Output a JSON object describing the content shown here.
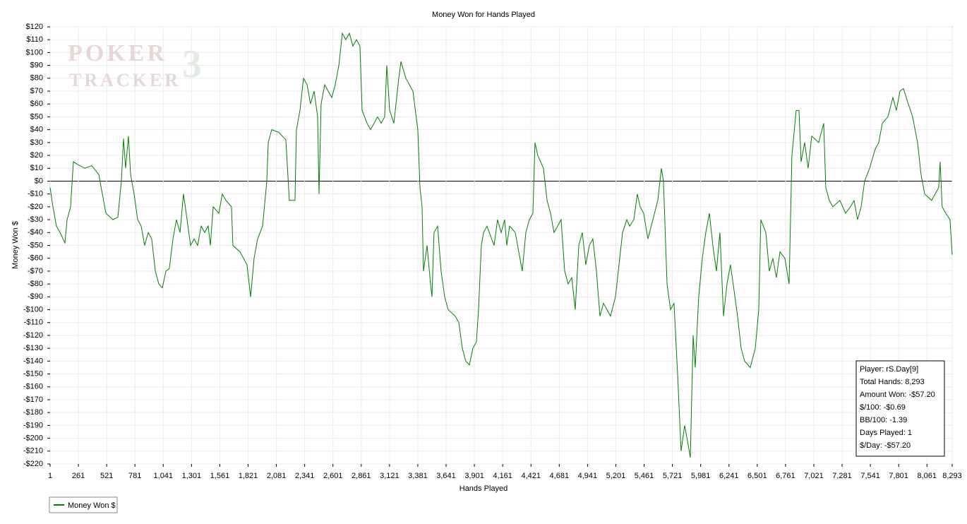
{
  "chart_data": {
    "type": "line",
    "title": "Money Won for Hands Played",
    "x_label": "Hands Played",
    "y_label": "Money Won $",
    "watermark": [
      "POKER",
      "TRACKER",
      "3"
    ],
    "stats": [
      "Player: rS.Day[9]",
      "Total Hands: 8,293",
      "Amount Won: -$57.20",
      "$/100: -$0.69",
      "BB/100: -1.39",
      "Days Played: 1",
      "$/Day: -$57.20"
    ],
    "grid": true,
    "xlim": [
      1,
      8293
    ],
    "ylim": [
      -220,
      120
    ],
    "xticks": [
      1,
      261,
      521,
      781,
      {
        "value": 1041,
        "label": "1,041"
      },
      {
        "value": 1301,
        "label": "1,301"
      },
      {
        "value": 1561,
        "label": "1,561"
      },
      {
        "value": 1821,
        "label": "1,821"
      },
      {
        "value": 2081,
        "label": "2,081"
      },
      {
        "value": 2341,
        "label": "2,341"
      },
      {
        "value": 2601,
        "label": "2,601"
      },
      {
        "value": 2861,
        "label": "2,861"
      },
      {
        "value": 3121,
        "label": "3,121"
      },
      {
        "value": 3381,
        "label": "3,381"
      },
      {
        "value": 3641,
        "label": "3,641"
      },
      {
        "value": 3901,
        "label": "3,901"
      },
      {
        "value": 4161,
        "label": "4,161"
      },
      {
        "value": 4421,
        "label": "4,421"
      },
      {
        "value": 4681,
        "label": "4,681"
      },
      {
        "value": 4941,
        "label": "4,941"
      },
      {
        "value": 5201,
        "label": "5,201"
      },
      {
        "value": 5461,
        "label": "5,461"
      },
      {
        "value": 5721,
        "label": "5,721"
      },
      {
        "value": 5981,
        "label": "5,981"
      },
      {
        "value": 6241,
        "label": "6,241"
      },
      {
        "value": 6501,
        "label": "6,501"
      },
      {
        "value": 6761,
        "label": "6,761"
      },
      {
        "value": 7021,
        "label": "7,021"
      },
      {
        "value": 7281,
        "label": "7,281"
      },
      {
        "value": 7541,
        "label": "7,541"
      },
      {
        "value": 7801,
        "label": "7,801"
      },
      {
        "value": 8061,
        "label": "8,061"
      },
      {
        "value": 8293,
        "label": "8,293"
      }
    ],
    "yticks": [
      {
        "value": 120,
        "label": "$120"
      },
      {
        "value": 110,
        "label": "$110"
      },
      {
        "value": 100,
        "label": "$100"
      },
      {
        "value": 90,
        "label": "$90"
      },
      {
        "value": 80,
        "label": "$80"
      },
      {
        "value": 70,
        "label": "$70"
      },
      {
        "value": 60,
        "label": "$60"
      },
      {
        "value": 50,
        "label": "$50"
      },
      {
        "value": 40,
        "label": "$40"
      },
      {
        "value": 30,
        "label": "$30"
      },
      {
        "value": 20,
        "label": "$20"
      },
      {
        "value": 10,
        "label": "$10"
      },
      {
        "value": 0,
        "label": "$0"
      },
      {
        "value": -10,
        "label": "-$10"
      },
      {
        "value": -20,
        "label": "-$20"
      },
      {
        "value": -30,
        "label": "-$30"
      },
      {
        "value": -40,
        "label": "-$40"
      },
      {
        "value": -50,
        "label": "-$50"
      },
      {
        "value": -60,
        "label": "-$60"
      },
      {
        "value": -70,
        "label": "-$70"
      },
      {
        "value": -80,
        "label": "-$80"
      },
      {
        "value": -90,
        "label": "-$90"
      },
      {
        "value": -100,
        "label": "-$100"
      },
      {
        "value": -110,
        "label": "-$110"
      },
      {
        "value": -120,
        "label": "-$120"
      },
      {
        "value": -130,
        "label": "-$130"
      },
      {
        "value": -140,
        "label": "-$140"
      },
      {
        "value": -150,
        "label": "-$150"
      },
      {
        "value": -160,
        "label": "-$160"
      },
      {
        "value": -170,
        "label": "-$170"
      },
      {
        "value": -180,
        "label": "-$180"
      },
      {
        "value": -190,
        "label": "-$190"
      },
      {
        "value": -200,
        "label": "-$200"
      },
      {
        "value": -210,
        "label": "-$210"
      },
      {
        "value": -220,
        "label": "-$220"
      }
    ],
    "x": [
      1,
      27,
      59,
      92,
      137,
      157,
      189,
      215,
      254,
      319,
      384,
      449,
      481,
      514,
      578,
      624,
      656,
      676,
      695,
      721,
      741,
      773,
      806,
      838,
      870,
      903,
      935,
      968,
      1000,
      1033,
      1065,
      1097,
      1130,
      1162,
      1195,
      1227,
      1260,
      1292,
      1325,
      1357,
      1389,
      1422,
      1454,
      1474,
      1500,
      1552,
      1584,
      1617,
      1668,
      1681,
      1746,
      1811,
      1844,
      1876,
      1908,
      1954,
      1993,
      2006,
      2038,
      2103,
      2168,
      2200,
      2252,
      2265,
      2298,
      2330,
      2363,
      2395,
      2428,
      2460,
      2473,
      2492,
      2525,
      2557,
      2590,
      2622,
      2655,
      2687,
      2719,
      2752,
      2784,
      2817,
      2849,
      2869,
      2914,
      2947,
      3011,
      3044,
      3076,
      3096,
      3122,
      3161,
      3206,
      3226,
      3271,
      3336,
      3381,
      3401,
      3420,
      3433,
      3466,
      3498,
      3511,
      3530,
      3563,
      3595,
      3628,
      3660,
      3725,
      3758,
      3790,
      3822,
      3855,
      3887,
      3920,
      3939,
      3965,
      3985,
      4017,
      4082,
      4114,
      4147,
      4179,
      4199,
      4225,
      4277,
      4341,
      4374,
      4406,
      4439,
      4458,
      4484,
      4536,
      4569,
      4601,
      4633,
      4666,
      4698,
      4731,
      4763,
      4796,
      4828,
      4861,
      4893,
      4925,
      4958,
      4990,
      5023,
      5055,
      5088,
      5120,
      5152,
      5198,
      5237,
      5263,
      5302,
      5328,
      5367,
      5399,
      5425,
      5457,
      5496,
      5542,
      5587,
      5620,
      5639,
      5672,
      5704,
      5736,
      5769,
      5801,
      5834,
      5866,
      5886,
      5912,
      5931,
      5963,
      5996,
      6028,
      6061,
      6093,
      6126,
      6158,
      6191,
      6223,
      6255,
      6288,
      6320,
      6353,
      6385,
      6437,
      6483,
      6515,
      6534,
      6580,
      6612,
      6645,
      6677,
      6710,
      6755,
      6794,
      6820,
      6859,
      6885,
      6904,
      6937,
      6969,
      7002,
      7066,
      7112,
      7131,
      7164,
      7196,
      7261,
      7313,
      7358,
      7391,
      7423,
      7456,
      7488,
      7534,
      7586,
      7618,
      7651,
      7702,
      7748,
      7780,
      7813,
      7845,
      7890,
      7929,
      7975,
      8007,
      8040,
      8104,
      8169,
      8182,
      8201,
      8234,
      8273,
      8293
    ],
    "series": [
      {
        "name": "Money Won $",
        "color": "#008000",
        "values": [
          -5,
          -20,
          -35,
          -40,
          -48,
          -30,
          -20,
          15,
          13,
          10,
          12,
          5,
          -10,
          -25,
          -30,
          -28,
          0,
          33,
          10,
          35,
          5,
          -10,
          -30,
          -35,
          -50,
          -40,
          -45,
          -70,
          -80,
          -83,
          -70,
          -68,
          -45,
          -30,
          -40,
          -10,
          -30,
          -50,
          -45,
          -50,
          -35,
          -40,
          -35,
          -50,
          -20,
          -25,
          -10,
          -15,
          -20,
          -50,
          -55,
          -65,
          -90,
          -60,
          -45,
          -35,
          0,
          30,
          40,
          38,
          32,
          -15,
          -15,
          40,
          55,
          80,
          75,
          60,
          70,
          50,
          -10,
          60,
          75,
          70,
          65,
          75,
          90,
          115,
          110,
          115,
          105,
          110,
          105,
          55,
          45,
          40,
          50,
          45,
          50,
          90,
          55,
          45,
          80,
          93,
          80,
          70,
          40,
          -5,
          -20,
          -70,
          -50,
          -80,
          -90,
          -40,
          -35,
          -70,
          -90,
          -100,
          -105,
          -110,
          -130,
          -140,
          -143,
          -130,
          -125,
          -100,
          -50,
          -40,
          -35,
          -50,
          -30,
          -40,
          -30,
          -50,
          -35,
          -40,
          -70,
          -40,
          -30,
          -25,
          30,
          20,
          10,
          -15,
          -25,
          -40,
          -35,
          -30,
          -70,
          -80,
          -75,
          -100,
          -50,
          -40,
          -65,
          -50,
          -45,
          -70,
          -105,
          -95,
          -100,
          -105,
          -90,
          -60,
          -40,
          -30,
          -35,
          -30,
          -10,
          -20,
          -25,
          -45,
          -30,
          -15,
          10,
          0,
          -80,
          -100,
          -95,
          -150,
          -210,
          -190,
          -205,
          -215,
          -120,
          -145,
          -90,
          -60,
          -40,
          -25,
          -50,
          -70,
          -40,
          -105,
          -80,
          -65,
          -85,
          -105,
          -130,
          -140,
          -145,
          -130,
          -100,
          -30,
          -40,
          -70,
          -60,
          -75,
          -55,
          -60,
          -80,
          20,
          55,
          55,
          15,
          30,
          10,
          35,
          30,
          45,
          -5,
          -15,
          -20,
          -15,
          -25,
          -20,
          -15,
          -30,
          -20,
          0,
          10,
          25,
          30,
          45,
          50,
          65,
          55,
          70,
          72,
          60,
          50,
          30,
          5,
          -10,
          -15,
          -5,
          15,
          -20,
          -25,
          -30,
          -57.2
        ]
      }
    ]
  }
}
